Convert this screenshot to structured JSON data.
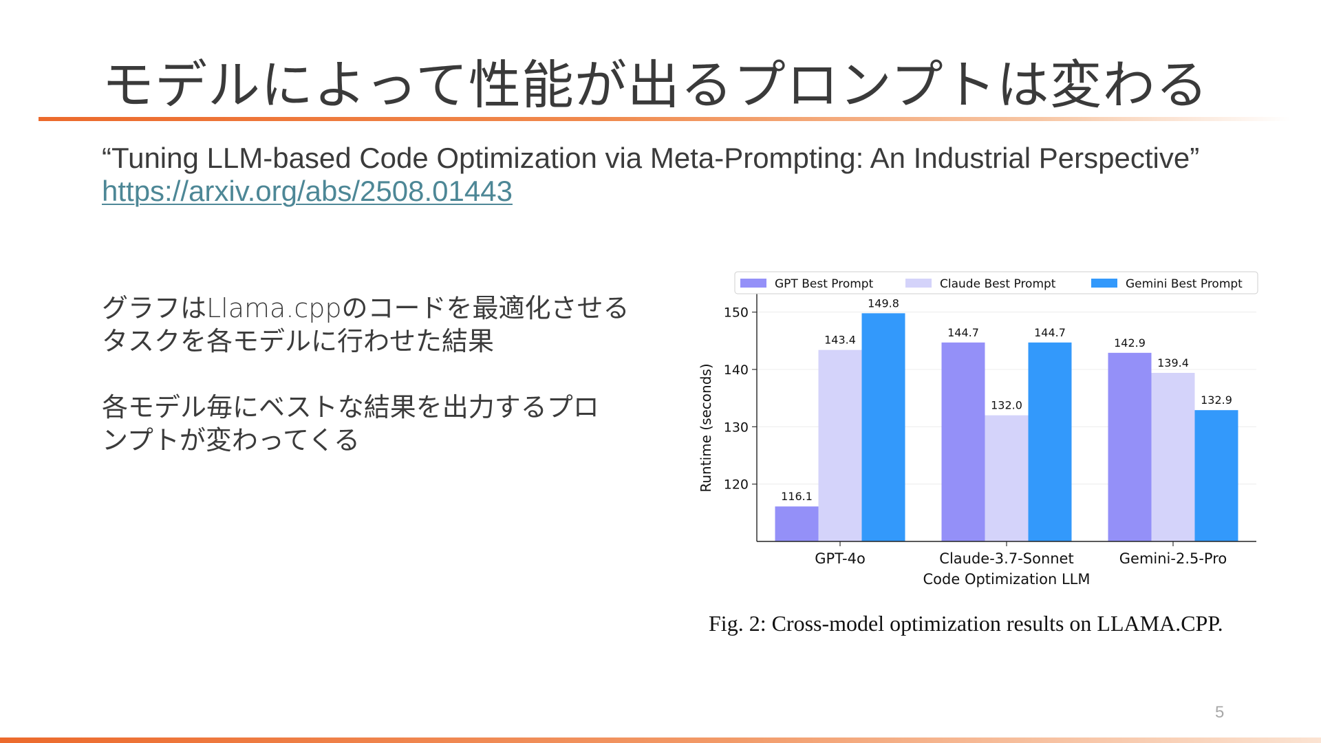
{
  "slide": {
    "title": "モデルによって性能が出るプロンプトは変わる",
    "paper_title": "“Tuning LLM-based Code Optimization via Meta-Prompting: An Industrial Perspective”",
    "paper_link": "https://arxiv.org/abs/2508.01443",
    "body_paragraphs": [
      "グラフはLlama.cppのコードを最適化させる\nタスクを各モデルに行わせた結果",
      "各モデル毎にベストな結果を出力するプロ\nンプトが変わってくる"
    ],
    "figure_caption": "Fig. 2: Cross-model optimization results on LLAMA.CPP.",
    "page_number": "5"
  },
  "chart_data": {
    "type": "bar",
    "categories": [
      "GPT-4o",
      "Claude-3.7-Sonnet",
      "Gemini-2.5-Pro"
    ],
    "series": [
      {
        "name": "GPT Best Prompt",
        "color": "#9490f8",
        "values": [
          116.1,
          144.7,
          142.9
        ]
      },
      {
        "name": "Claude Best Prompt",
        "color": "#d4d3fa",
        "values": [
          143.4,
          132.0,
          139.4
        ]
      },
      {
        "name": "Gemini Best Prompt",
        "color": "#3399fb",
        "values": [
          149.8,
          144.7,
          132.9
        ]
      }
    ],
    "xlabel": "Code Optimization LLM",
    "ylabel": "Runtime (seconds)",
    "ylim": [
      110,
      152
    ],
    "yticks": [
      120,
      130,
      140,
      150
    ],
    "grid": true,
    "legend": "top"
  }
}
